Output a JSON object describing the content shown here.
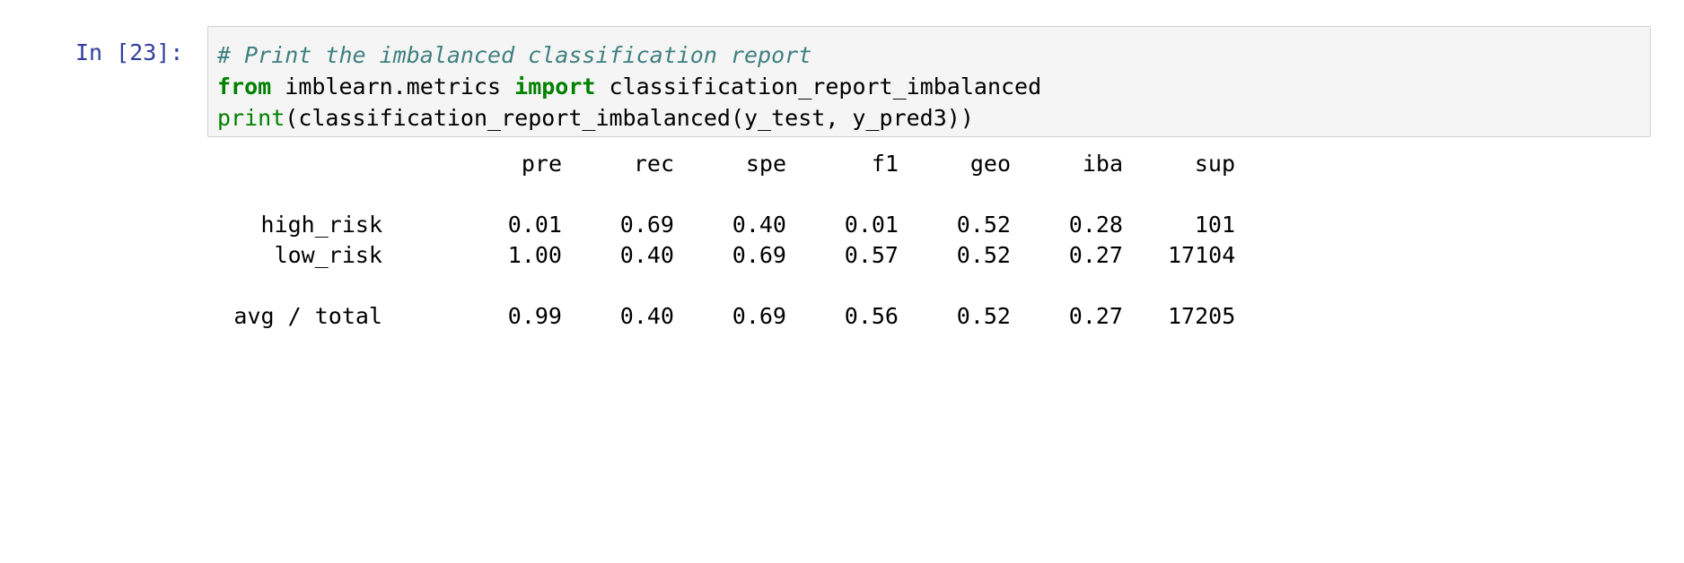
{
  "prompt": "In [23]:",
  "code": {
    "line1": {
      "comment": "# Print the imbalanced classification report"
    },
    "line2": {
      "kw1": "from",
      "mod": " imblearn.metrics ",
      "kw2": "import",
      "name": " classification_report_imbalanced"
    },
    "line3": {
      "builtin": "print",
      "rest": "(classification_report_imbalanced(y_test, y_pred3))"
    }
  },
  "report": {
    "headers": [
      "pre",
      "rec",
      "spe",
      "f1",
      "geo",
      "iba",
      "sup"
    ],
    "rows": [
      {
        "label": "high_risk",
        "values": [
          "0.01",
          "0.69",
          "0.40",
          "0.01",
          "0.52",
          "0.28",
          "101"
        ]
      },
      {
        "label": "low_risk",
        "values": [
          "1.00",
          "0.40",
          "0.69",
          "0.57",
          "0.52",
          "0.27",
          "17104"
        ]
      }
    ],
    "total": {
      "label": "avg / total",
      "values": [
        "0.99",
        "0.40",
        "0.69",
        "0.56",
        "0.52",
        "0.27",
        "17205"
      ]
    }
  },
  "colors": {
    "prompt": "#303f9f",
    "comment": "#408080",
    "keyword": "#008000",
    "cell_background": "#f5f5f5",
    "cell_border": "#cfcfcf"
  }
}
